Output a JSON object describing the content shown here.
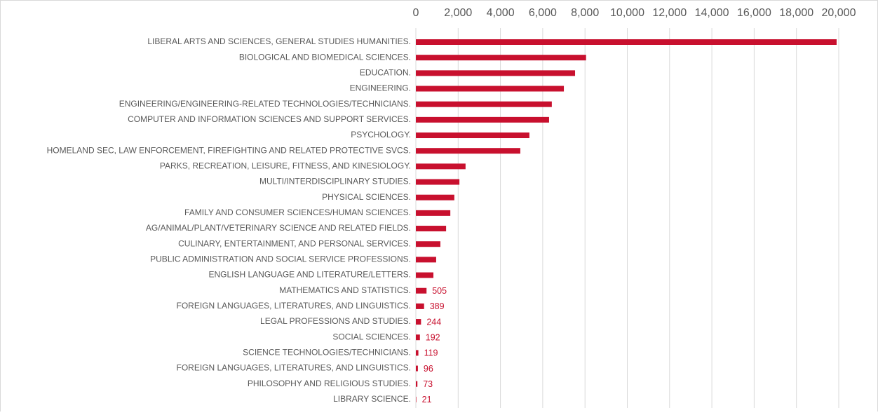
{
  "chart_data": {
    "type": "bar",
    "orientation": "horizontal",
    "categories": [
      "LIBERAL ARTS AND SCIENCES, GENERAL STUDIES HUMANITIES.",
      "BIOLOGICAL AND BIOMEDICAL SCIENCES.",
      "EDUCATION.",
      "ENGINEERING.",
      "ENGINEERING/ENGINEERING-RELATED TECHNOLOGIES/TECHNICIANS.",
      "COMPUTER AND INFORMATION SCIENCES AND SUPPORT SERVICES.",
      "PSYCHOLOGY.",
      "HOMELAND SEC, LAW ENFORCEMENT, FIREFIGHTING AND RELATED PROTECTIVE SVCS.",
      "PARKS, RECREATION, LEISURE, FITNESS, AND KINESIOLOGY.",
      "MULTI/INTERDISCIPLINARY STUDIES.",
      "PHYSICAL SCIENCES.",
      "FAMILY AND CONSUMER SCIENCES/HUMAN SCIENCES.",
      "AG/ANIMAL/PLANT/VETERINARY SCIENCE AND RELATED FIELDS.",
      "CULINARY, ENTERTAINMENT, AND PERSONAL SERVICES.",
      "PUBLIC ADMINISTRATION AND SOCIAL SERVICE PROFESSIONS.",
      "ENGLISH LANGUAGE AND LITERATURE/LETTERS.",
      "MATHEMATICS AND STATISTICS.",
      "FOREIGN LANGUAGES, LITERATURES, AND LINGUISTICS.",
      "LEGAL PROFESSIONS AND STUDIES.",
      "SOCIAL SCIENCES.",
      "SCIENCE TECHNOLOGIES/TECHNICIANS.",
      "FOREIGN LANGUAGES, LITERATURES, AND LINGUISTICS.",
      "PHILOSOPHY AND RELIGIOUS STUDIES.",
      "LIBRARY SCIENCE."
    ],
    "values": [
      19900,
      8050,
      7530,
      7000,
      6430,
      6300,
      5370,
      4940,
      2350,
      2060,
      1820,
      1630,
      1430,
      1160,
      960,
      830,
      505,
      389,
      244,
      192,
      119,
      96,
      73,
      21
    ],
    "value_labels": [
      null,
      null,
      null,
      null,
      null,
      null,
      null,
      null,
      null,
      null,
      null,
      null,
      null,
      null,
      null,
      null,
      "505",
      "389",
      "244",
      "192",
      "119",
      "96",
      "73",
      "21"
    ],
    "color": "#c8102e",
    "xlim": [
      0,
      20000
    ],
    "xticks": [
      0,
      {
        "value": 2000,
        "label": "2,000"
      },
      {
        "value": 4000,
        "label": "4,000"
      },
      {
        "value": 6000,
        "label": "6,000"
      },
      {
        "value": 8000,
        "label": "8,000"
      },
      {
        "value": 10000,
        "label": "10,000"
      },
      {
        "value": 12000,
        "label": "12,000"
      },
      {
        "value": 14000,
        "label": "14,000"
      },
      {
        "value": 16000,
        "label": "16,000"
      },
      {
        "value": 18000,
        "label": "18,000"
      },
      {
        "value": 20000,
        "label": "20,000"
      }
    ],
    "grid": true
  }
}
